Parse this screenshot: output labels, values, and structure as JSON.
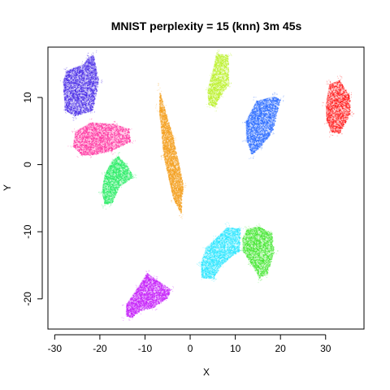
{
  "chart_data": {
    "type": "scatter",
    "title": "MNIST perplexity = 15 (knn) 3m 45s",
    "xlabel": "X",
    "ylabel": "Y",
    "xlim": [
      -31.5,
      38.5
    ],
    "ylim": [
      -24.5,
      17.5
    ],
    "xticks": [
      -30,
      -20,
      -10,
      0,
      10,
      20,
      30
    ],
    "yticks": [
      -20,
      -10,
      0,
      10
    ],
    "grid": false,
    "legend": "none",
    "series": [
      {
        "color": "#ff1414",
        "outline": [
          [
            30.0,
            9.0
          ],
          [
            30.8,
            12.0
          ],
          [
            33.0,
            12.6
          ],
          [
            35.3,
            10.3
          ],
          [
            35.4,
            7.6
          ],
          [
            33.0,
            4.7
          ],
          [
            31.2,
            4.9
          ],
          [
            30.2,
            6.5
          ]
        ]
      },
      {
        "color": "#2468ff",
        "outline": [
          [
            12.4,
            3.8
          ],
          [
            12.3,
            6.5
          ],
          [
            14.6,
            9.5
          ],
          [
            18.5,
            10.2
          ],
          [
            19.9,
            9.7
          ],
          [
            18.2,
            5.0
          ],
          [
            15.4,
            2.6
          ],
          [
            13.6,
            1.5
          ]
        ]
      },
      {
        "color": "#b8f020",
        "outline": [
          [
            3.8,
            11.2
          ],
          [
            4.7,
            13.4
          ],
          [
            5.8,
            16.6
          ],
          [
            8.4,
            16.3
          ],
          [
            8.5,
            12.0
          ],
          [
            6.7,
            10.3
          ],
          [
            5.5,
            8.6
          ],
          [
            4.0,
            9.0
          ]
        ]
      },
      {
        "color": "#4424e6",
        "outline": [
          [
            -28.2,
            12.3
          ],
          [
            -27.5,
            14.0
          ],
          [
            -23.6,
            15.0
          ],
          [
            -22.6,
            16.0
          ],
          [
            -21.5,
            16.4
          ],
          [
            -20.3,
            12.4
          ],
          [
            -21.7,
            8.1
          ],
          [
            -25.6,
            7.3
          ],
          [
            -27.8,
            8.1
          ]
        ]
      },
      {
        "color": "#ff2b9c",
        "outline": [
          [
            -26.0,
            2.8
          ],
          [
            -25.5,
            5.0
          ],
          [
            -22.0,
            6.3
          ],
          [
            -16.9,
            6.1
          ],
          [
            -13.7,
            5.4
          ],
          [
            -13.3,
            3.5
          ],
          [
            -17.3,
            2.1
          ],
          [
            -21.5,
            1.5
          ],
          [
            -24.1,
            1.4
          ]
        ]
      },
      {
        "color": "#f4a020",
        "outline": [
          [
            -6.8,
            10.9
          ],
          [
            -5.8,
            8.6
          ],
          [
            -3.8,
            4.0
          ],
          [
            -1.6,
            -3.0
          ],
          [
            -2.1,
            -7.3
          ],
          [
            -3.8,
            -5.0
          ],
          [
            -5.9,
            1.2
          ],
          [
            -6.9,
            8.0
          ]
        ]
      },
      {
        "color": "#28ec64",
        "outline": [
          [
            -19.6,
            -4.0
          ],
          [
            -19.0,
            -1.5
          ],
          [
            -17.5,
            0.5
          ],
          [
            -16.0,
            1.3
          ],
          [
            -14.1,
            0.0
          ],
          [
            -12.6,
            -1.8
          ],
          [
            -15.7,
            -3.2
          ],
          [
            -17.4,
            -5.7
          ],
          [
            -19.0,
            -5.9
          ]
        ]
      },
      {
        "color": "#28e6ff",
        "outline": [
          [
            2.3,
            -14.6
          ],
          [
            3.5,
            -12.3
          ],
          [
            5.6,
            -11.0
          ],
          [
            8.1,
            -9.3
          ],
          [
            11.0,
            -9.5
          ],
          [
            10.9,
            -12.8
          ],
          [
            6.8,
            -14.9
          ],
          [
            5.2,
            -16.9
          ],
          [
            2.5,
            -16.9
          ]
        ]
      },
      {
        "color": "#3ee62a",
        "outline": [
          [
            11.5,
            -11.0
          ],
          [
            12.6,
            -9.5
          ],
          [
            15.1,
            -9.2
          ],
          [
            18.0,
            -10.1
          ],
          [
            18.5,
            -13.0
          ],
          [
            17.0,
            -16.2
          ],
          [
            15.3,
            -16.9
          ],
          [
            13.3,
            -14.6
          ],
          [
            11.6,
            -12.8
          ]
        ]
      },
      {
        "color": "#c41efa",
        "outline": [
          [
            -14.3,
            -22.5
          ],
          [
            -14.2,
            -20.8
          ],
          [
            -11.6,
            -18.2
          ],
          [
            -9.6,
            -16.1
          ],
          [
            -7.8,
            -17.0
          ],
          [
            -4.4,
            -18.5
          ],
          [
            -5.0,
            -19.8
          ],
          [
            -8.0,
            -21.2
          ],
          [
            -11.0,
            -21.7
          ],
          [
            -13.0,
            -22.7
          ]
        ]
      }
    ]
  }
}
